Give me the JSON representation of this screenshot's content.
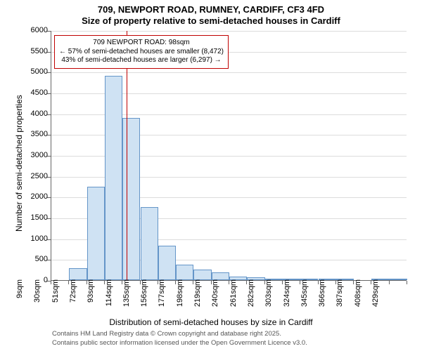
{
  "title_line1": "709, NEWPORT ROAD, RUMNEY, CARDIFF, CF3 4FD",
  "title_line2": "Size of property relative to semi-detached houses in Cardiff",
  "y_axis_title": "Number of semi-detached properties",
  "x_axis_title": "Distribution of semi-detached houses by size in Cardiff",
  "footer_text1": "Contains HM Land Registry data © Crown copyright and database right 2025.",
  "footer_text2": "Contains public sector information licensed under the Open Government Licence v3.0.",
  "chart": {
    "type": "histogram",
    "ylim": [
      0,
      6000
    ],
    "ytick_step": 500,
    "yticks": [
      0,
      500,
      1000,
      1500,
      2000,
      2500,
      3000,
      3500,
      4000,
      4500,
      5000,
      5500,
      6000
    ],
    "xlim": [
      9,
      429
    ],
    "xtick_labels": [
      "9sqm",
      "30sqm",
      "51sqm",
      "72sqm",
      "93sqm",
      "114sqm",
      "135sqm",
      "156sqm",
      "177sqm",
      "198sqm",
      "219sqm",
      "240sqm",
      "261sqm",
      "282sqm",
      "303sqm",
      "324sqm",
      "345sqm",
      "366sqm",
      "387sqm",
      "408sqm",
      "429sqm"
    ],
    "xtick_values": [
      9,
      30,
      51,
      72,
      93,
      114,
      135,
      156,
      177,
      198,
      219,
      240,
      261,
      282,
      303,
      324,
      345,
      366,
      387,
      408,
      429
    ],
    "bar_fill": "#cfe2f3",
    "bar_stroke": "#6495c8",
    "grid_color": "#dcdcdc",
    "background_color": "#ffffff",
    "title_fontsize": 13,
    "label_fontsize": 12,
    "tick_fontsize": 11,
    "bars": [
      {
        "x0": 9,
        "x1": 30,
        "value": 0
      },
      {
        "x0": 30,
        "x1": 51,
        "value": 280
      },
      {
        "x0": 51,
        "x1": 72,
        "value": 2250
      },
      {
        "x0": 72,
        "x1": 93,
        "value": 4900
      },
      {
        "x0": 93,
        "x1": 114,
        "value": 3900
      },
      {
        "x0": 114,
        "x1": 135,
        "value": 1750
      },
      {
        "x0": 135,
        "x1": 156,
        "value": 830
      },
      {
        "x0": 156,
        "x1": 177,
        "value": 370
      },
      {
        "x0": 177,
        "x1": 198,
        "value": 250
      },
      {
        "x0": 198,
        "x1": 219,
        "value": 190
      },
      {
        "x0": 219,
        "x1": 240,
        "value": 80
      },
      {
        "x0": 240,
        "x1": 261,
        "value": 60
      },
      {
        "x0": 261,
        "x1": 282,
        "value": 40
      },
      {
        "x0": 282,
        "x1": 303,
        "value": 15
      },
      {
        "x0": 303,
        "x1": 324,
        "value": 15
      },
      {
        "x0": 324,
        "x1": 345,
        "value": 10
      },
      {
        "x0": 345,
        "x1": 366,
        "value": 5
      },
      {
        "x0": 366,
        "x1": 387,
        "value": 0
      },
      {
        "x0": 387,
        "x1": 408,
        "value": 5
      },
      {
        "x0": 408,
        "x1": 429,
        "value": 5
      }
    ],
    "reference_line": {
      "x": 98,
      "color": "#c00000"
    },
    "annotation": {
      "line1": "709 NEWPORT ROAD: 98sqm",
      "line2": "← 57% of semi-detached houses are smaller (8,472)",
      "line3": "43% of semi-detached houses are larger (6,297) →",
      "border_color": "#c00000",
      "background_color": "#ffffff",
      "fontsize": 10
    }
  }
}
